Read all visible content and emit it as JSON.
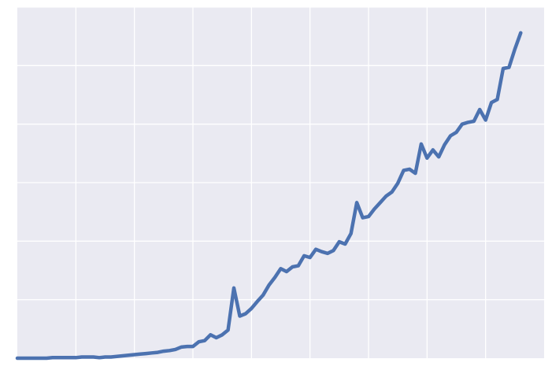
{
  "colors": {
    "background": "#ffffff",
    "plot_background": "#eaeaf2",
    "grid": "#ffffff",
    "line": "#4c72b0"
  },
  "chart_data": {
    "type": "line",
    "title": "",
    "xlabel": "",
    "ylabel": "",
    "grid": true,
    "legend": "none",
    "xlim": [
      0,
      90
    ],
    "ylim": [
      0,
      6
    ],
    "x_gridlines": [
      10,
      20,
      30,
      40,
      50,
      60,
      70,
      80
    ],
    "y_gridlines": [
      1,
      2,
      3,
      4,
      5,
      6
    ],
    "series": [
      {
        "x": [
          0,
          1,
          2,
          3,
          4,
          5,
          6,
          7,
          8,
          9,
          10,
          11,
          12,
          13,
          14,
          15,
          16,
          17,
          18,
          19,
          20,
          21,
          22,
          23,
          24,
          25,
          26,
          27,
          28,
          29,
          30,
          31,
          32,
          33,
          34,
          35,
          36,
          37,
          38,
          39,
          40,
          41,
          42,
          43,
          44,
          45,
          46,
          47,
          48,
          49,
          50,
          51,
          52,
          53,
          54,
          55,
          56,
          57,
          58,
          59,
          60,
          61,
          62,
          63,
          64,
          65,
          66,
          67,
          68,
          69,
          70,
          71,
          72,
          73,
          74,
          75,
          76,
          77,
          78,
          79,
          80,
          81,
          82,
          83,
          84,
          85,
          86
        ],
        "values": [
          0.0,
          0.0,
          0.0,
          0.0,
          0.0,
          0.0,
          0.01,
          0.01,
          0.01,
          0.01,
          0.01,
          0.02,
          0.02,
          0.02,
          0.01,
          0.02,
          0.02,
          0.03,
          0.04,
          0.05,
          0.06,
          0.07,
          0.08,
          0.09,
          0.1,
          0.12,
          0.13,
          0.15,
          0.19,
          0.2,
          0.2,
          0.28,
          0.3,
          0.4,
          0.35,
          0.4,
          0.48,
          1.2,
          0.72,
          0.76,
          0.85,
          0.97,
          1.08,
          1.25,
          1.38,
          1.53,
          1.48,
          1.56,
          1.58,
          1.75,
          1.72,
          1.86,
          1.82,
          1.79,
          1.84,
          1.99,
          1.95,
          2.13,
          2.66,
          2.4,
          2.42,
          2.55,
          2.66,
          2.77,
          2.84,
          2.99,
          3.21,
          3.23,
          3.16,
          3.66,
          3.42,
          3.56,
          3.44,
          3.65,
          3.8,
          3.86,
          4.0,
          4.03,
          4.05,
          4.25,
          4.07,
          4.37,
          4.42,
          4.95,
          4.97,
          5.28,
          5.56
        ]
      }
    ]
  }
}
